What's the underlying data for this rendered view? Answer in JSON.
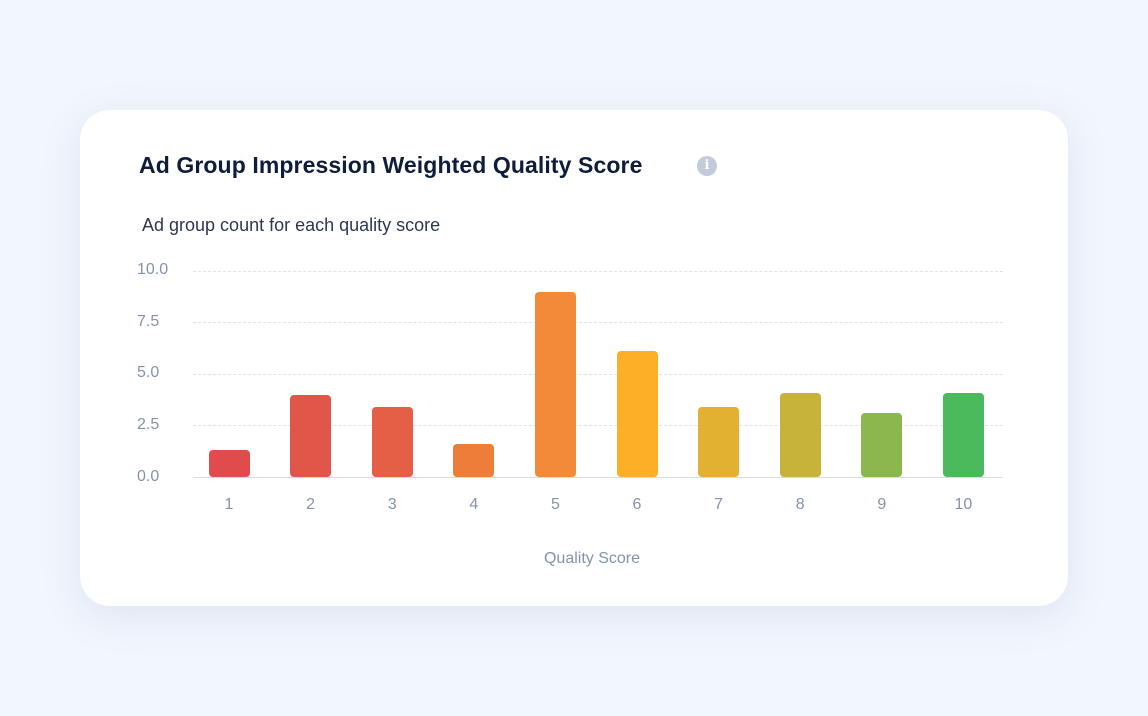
{
  "card": {
    "title": "Ad Group Impression Weighted Quality Score",
    "info_icon": "info-icon",
    "info_glyph": "i",
    "subtitle": "Ad group count for each quality score"
  },
  "chart_data": {
    "type": "bar",
    "title": "Ad Group Impression Weighted Quality Score",
    "subtitle": "Ad group count for each quality score",
    "xlabel": "Quality Score",
    "ylabel": "",
    "categories": [
      "1",
      "2",
      "3",
      "4",
      "5",
      "6",
      "7",
      "8",
      "9",
      "10"
    ],
    "values": [
      1.3,
      4.0,
      3.4,
      1.6,
      9.0,
      6.1,
      3.4,
      4.1,
      3.1,
      4.1
    ],
    "colors": [
      "#e04b4b",
      "#e15649",
      "#e45f46",
      "#ee7d39",
      "#f28a38",
      "#fcb028",
      "#e2b132",
      "#c7b23a",
      "#8ab84e",
      "#4bba5c"
    ],
    "yticks": [
      "0.0",
      "2.5",
      "5.0",
      "7.5",
      "10.0"
    ],
    "ylim": [
      0,
      10
    ],
    "grid": true,
    "legend": null
  },
  "colors": {
    "background": "#f2f6fd",
    "card": "#ffffff",
    "title": "#0f1d3a",
    "axis_text": "#8592a8",
    "grid": "#dde3ee"
  }
}
